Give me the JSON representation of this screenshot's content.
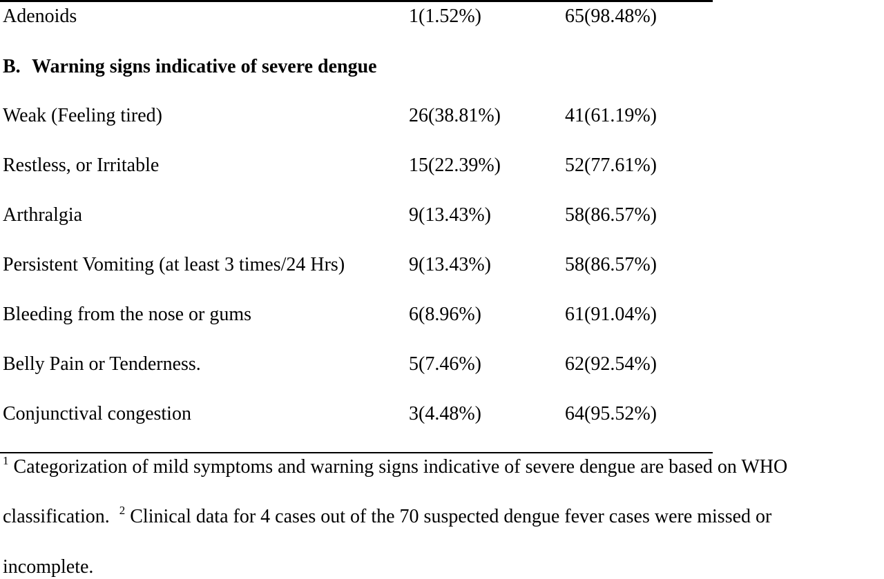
{
  "top_row": {
    "label": "Adenoids",
    "yes": "1(1.52%)",
    "no": "65(98.48%)"
  },
  "section_b": {
    "letter": "B.",
    "title": "Warning signs indicative of severe dengue"
  },
  "rows": [
    {
      "label": "Weak (Feeling tired)",
      "yes": "26(38.81%)",
      "no": "41(61.19%)"
    },
    {
      "label": "Restless, or Irritable",
      "yes": "15(22.39%)",
      "no": "52(77.61%)"
    },
    {
      "label": "Arthralgia",
      "yes": "9(13.43%)",
      "no": "58(86.57%)"
    },
    {
      "label": "Persistent Vomiting (at least 3 times/24 Hrs)",
      "yes": "9(13.43%)",
      "no": "58(86.57%)"
    },
    {
      "label": "Bleeding from the nose or gums",
      "yes": "6(8.96%)",
      "no": "61(91.04%)"
    },
    {
      "label": "Belly Pain or Tenderness.",
      "yes": "5(7.46%)",
      "no": "62(92.54%)"
    },
    {
      "label": "Conjunctival congestion",
      "yes": "3(4.48%)",
      "no": "64(95.52%)"
    }
  ],
  "footnotes": {
    "note1_marker": "1",
    "note1_text": "Categorization of mild symptoms and warning signs indicative of severe dengue are based on WHO",
    "note1_cont": "classification.",
    "note2_marker": "2",
    "note2_text": "Clinical data for 4 cases out of the 70 suspected dengue fever cases were missed or",
    "note2_cont": "incomplete."
  }
}
